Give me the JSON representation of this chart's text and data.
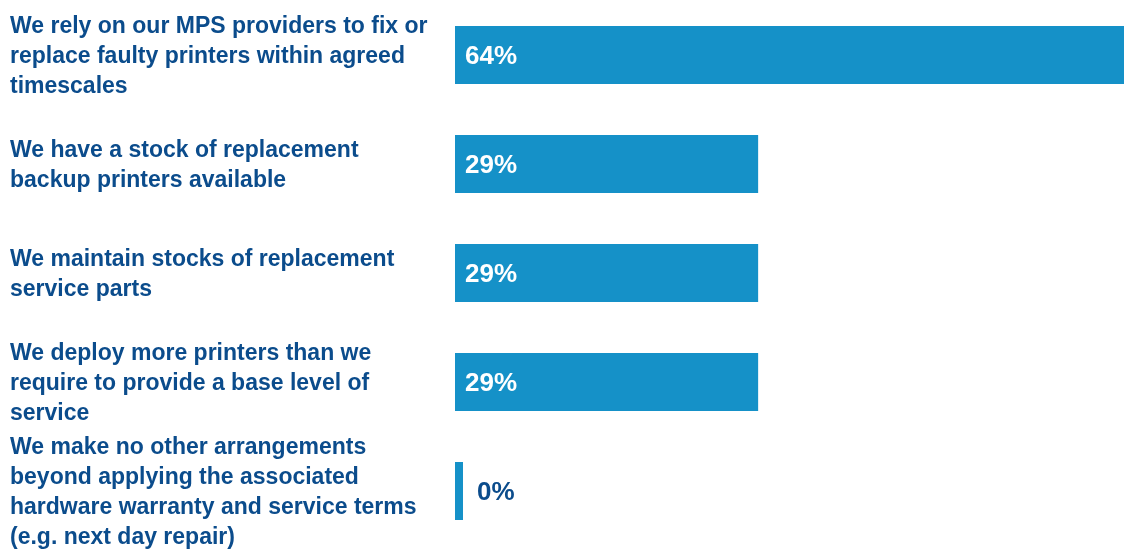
{
  "chart_data": {
    "type": "bar",
    "orientation": "horizontal",
    "categories": [
      "We rely on our MPS providers to fix or replace faulty printers within agreed timescales",
      "We have a stock of replacement backup printers available",
      "We maintain stocks of replacement service parts",
      "We deploy more printers than we require to provide a base level of service",
      "We make no other arrangements beyond applying the associated hardware warranty and service terms (e.g. next day repair)"
    ],
    "values": [
      64,
      29,
      29,
      29,
      0
    ],
    "value_labels": [
      "64%",
      "29%",
      "29%",
      "29%",
      "0%"
    ],
    "color": "#1591c8"
  }
}
